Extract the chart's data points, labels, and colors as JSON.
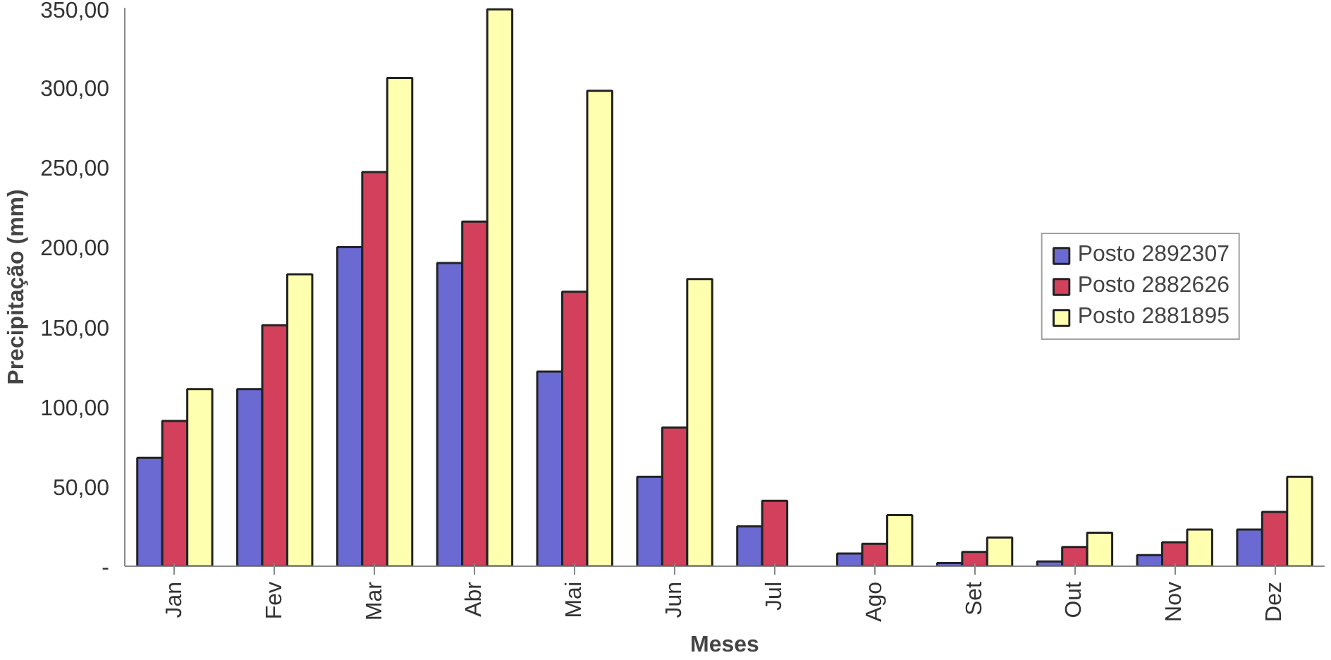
{
  "chart_data": {
    "type": "bar",
    "xlabel": "Meses",
    "ylabel": "Precipitação (mm)",
    "categories": [
      "Jan",
      "Fev",
      "Mar",
      "Abr",
      "Mai",
      "Jun",
      "Jul",
      "Ago",
      "Set",
      "Out",
      "Nov",
      "Dez"
    ],
    "series": [
      {
        "name": "Posto 2892307",
        "color": "#6a6ad2",
        "values": [
          68,
          111,
          200,
          190,
          122,
          56,
          25,
          8,
          2,
          3,
          7,
          23
        ]
      },
      {
        "name": "Posto 2882626",
        "color": "#d2405c",
        "values": [
          91,
          151,
          247,
          216,
          172,
          87,
          41,
          14,
          9,
          12,
          15,
          34
        ]
      },
      {
        "name": "Posto 2881895",
        "color": "#ffffb0",
        "values": [
          111,
          183,
          306,
          349,
          298,
          180,
          null,
          32,
          18,
          21,
          23,
          56
        ]
      }
    ],
    "ylim": [
      0,
      350
    ],
    "yticks": [
      {
        "value": 0,
        "label": "-"
      },
      {
        "value": 50,
        "label": "50,00"
      },
      {
        "value": 100,
        "label": "100,00"
      },
      {
        "value": 150,
        "label": "150,00"
      },
      {
        "value": 200,
        "label": "200,00"
      },
      {
        "value": 250,
        "label": "250,00"
      },
      {
        "value": 300,
        "label": "300,00"
      },
      {
        "value": 350,
        "label": "350,00"
      }
    ],
    "grid": false,
    "legend": "right"
  }
}
